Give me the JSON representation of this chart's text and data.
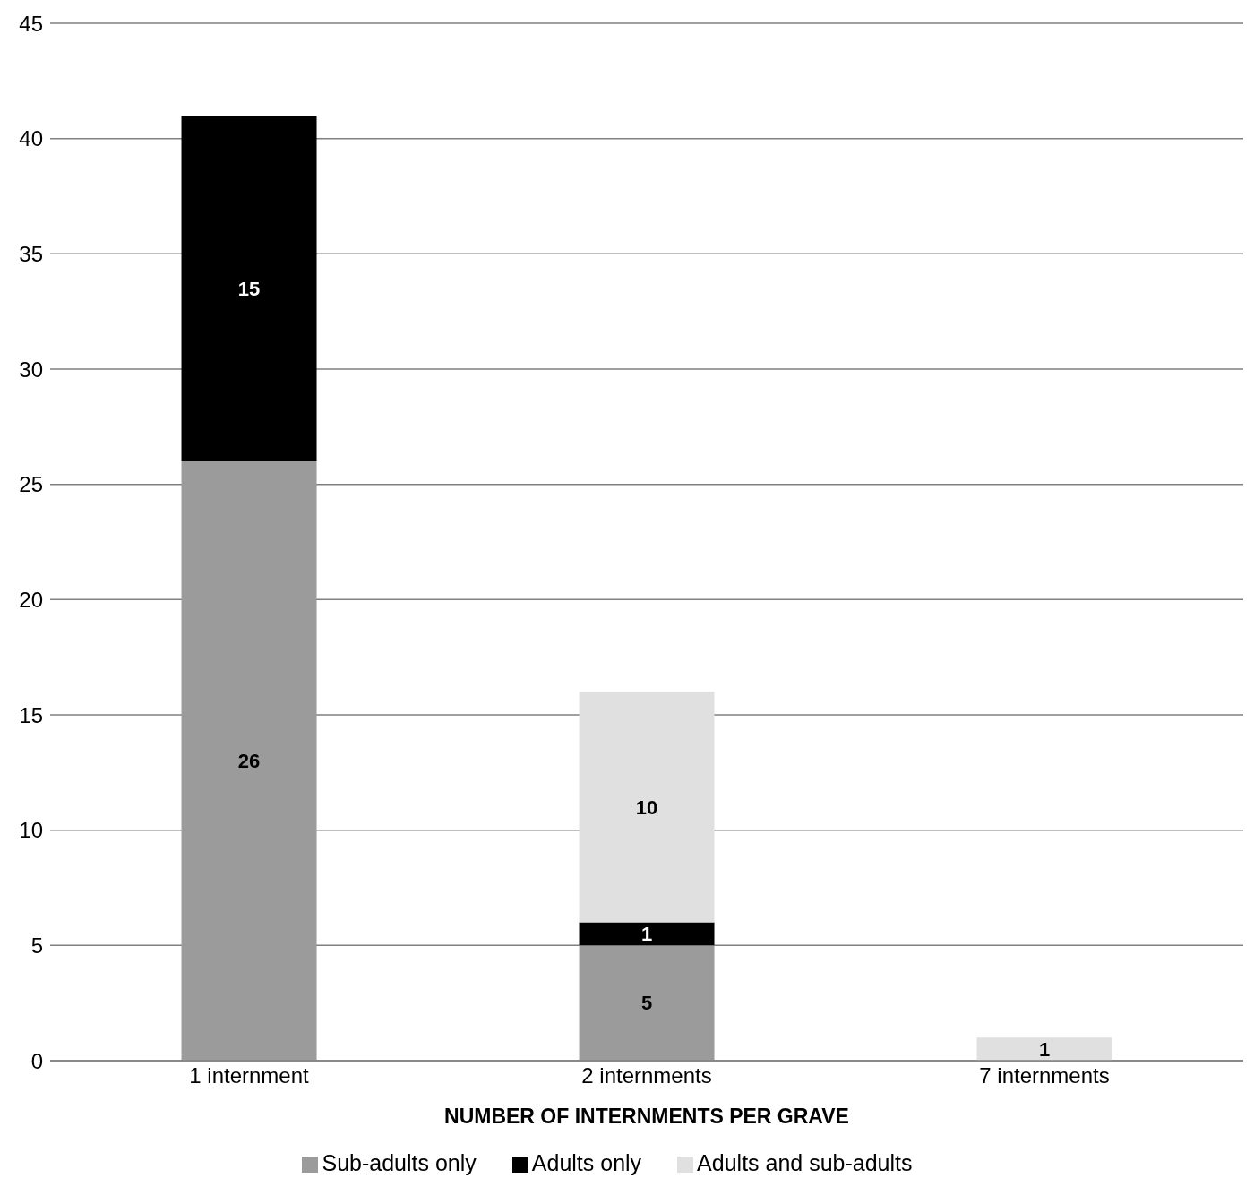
{
  "chart_data": {
    "type": "bar",
    "stacked": true,
    "xlabel": "NUMBER OF INTERNMENTS PER GRAVE",
    "categories": [
      "1 internment",
      "2 internments",
      "7 internments"
    ],
    "series": [
      {
        "name": "Sub-adults only",
        "color": "#9b9b9b",
        "values": [
          26,
          5,
          null
        ]
      },
      {
        "name": "Adults only",
        "color": "#000000",
        "values": [
          15,
          1,
          null
        ]
      },
      {
        "name": "Adults and sub-adults",
        "color": "#e0e0e0",
        "values": [
          null,
          10,
          1
        ]
      }
    ],
    "ylim": [
      0,
      45
    ],
    "yticks": [
      0,
      5,
      10,
      15,
      20,
      25,
      30,
      35,
      40,
      45
    ],
    "grid": "y",
    "legend": "bottom",
    "data_labels": true
  }
}
